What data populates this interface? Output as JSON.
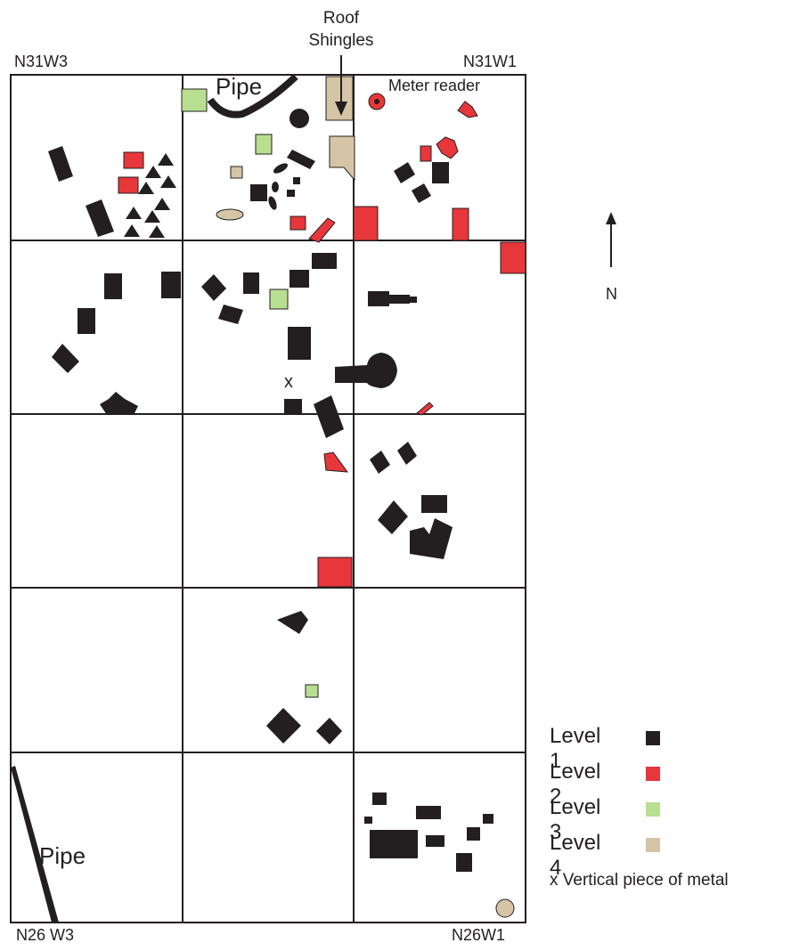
{
  "map": {
    "corners": {
      "nw": "N31W3",
      "ne": "N31W1",
      "sw": "N26 W3",
      "se": "N26W1"
    },
    "annotations": {
      "roof_shingles": "Roof\nShingles",
      "meter_reader": "Meter reader",
      "pipe_top": "Pipe",
      "pipe_bottom": "Pipe",
      "metal_marker": "x"
    },
    "north_label": "N"
  },
  "legend": {
    "items": [
      {
        "label": "Level 1",
        "color": "#231f20"
      },
      {
        "label": "Level 2",
        "color": "#e7373a"
      },
      {
        "label": "Level 3",
        "color": "#b8df8f"
      },
      {
        "label": "Level 4",
        "color": "#d6c4a6"
      }
    ],
    "symbol_note": "x Vertical piece of metal"
  },
  "colors": {
    "level1": "#231f20",
    "level2": "#e7373a",
    "level3": "#b8df8f",
    "level4": "#d6c4a6",
    "grid": "#231f20"
  }
}
